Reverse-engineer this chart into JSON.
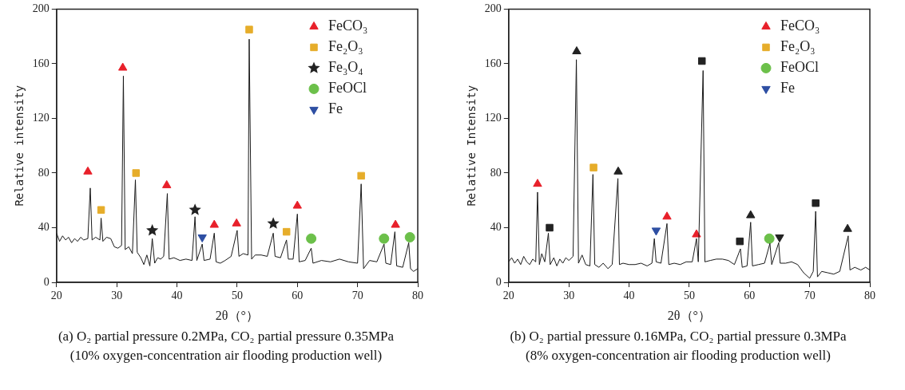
{
  "chart_data": [
    {
      "type": "line",
      "xlabel": "2θ（°）",
      "ylabel": "Relative intensity",
      "xlim": [
        20,
        80
      ],
      "xticks": [
        20,
        30,
        40,
        50,
        60,
        70,
        80
      ],
      "ylim": [
        0,
        200
      ],
      "yticks": [
        0,
        40,
        80,
        120,
        160,
        200
      ],
      "legend": "top right",
      "annotations": [
        "(a) O₂ partial pressure 0.2MPa, CO₂ partial pressure 0.35MPa",
        "(10% oxygen-concentration air flooding production well)"
      ],
      "series": [
        {
          "type": "line",
          "marker": "none",
          "color": "#1a1a1a",
          "x": [
            20,
            20.5,
            21,
            21.5,
            22,
            22.5,
            23,
            23.5,
            24,
            24.5,
            25.2,
            25.6,
            25.9,
            26.5,
            27.2,
            27.4,
            27.7,
            28.3,
            29,
            29.6,
            30.2,
            30.8,
            31.1,
            31.4,
            32,
            32.6,
            33.1,
            33.4,
            34,
            34.5,
            35,
            35.5,
            35.9,
            36.3,
            36.8,
            37.3,
            37.8,
            38.4,
            38.7,
            39.5,
            40.5,
            41.5,
            42.5,
            43,
            43.3,
            44.2,
            44.5,
            45.5,
            46.2,
            46.5,
            47.2,
            48,
            49,
            50,
            50.3,
            51,
            51.8,
            52,
            52.4,
            53,
            54,
            55,
            56,
            56.3,
            57.2,
            58.2,
            58.5,
            59.3,
            60,
            60.3,
            61.3,
            62.3,
            62.6,
            64,
            65.5,
            67,
            68.5,
            70,
            70.6,
            71,
            72,
            73.2,
            74.4,
            74.7,
            75.5,
            76.2,
            76.5,
            77.5,
            78.5,
            78.8,
            79.3,
            80
          ],
          "values": [
            36,
            30,
            34,
            31,
            33,
            29,
            32,
            30,
            33,
            31,
            32,
            69,
            31,
            33,
            31,
            47,
            30,
            33,
            32,
            26,
            25,
            27,
            151,
            24,
            26,
            21,
            75,
            22,
            18,
            13,
            20,
            12,
            32,
            14,
            18,
            17,
            19,
            65,
            17,
            18,
            16,
            17,
            16,
            48,
            16,
            28,
            16,
            17,
            36,
            15,
            14,
            16,
            19,
            38,
            19,
            21,
            20,
            178,
            17,
            20,
            20,
            19,
            36,
            19,
            18,
            31,
            17,
            17,
            50,
            15,
            16,
            25,
            14,
            16,
            15,
            17,
            15,
            14,
            72,
            10,
            16,
            15,
            28,
            14,
            13,
            37,
            12,
            11,
            29,
            10,
            8,
            10
          ]
        },
        {
          "type": "scatter",
          "name": "FeCO₃",
          "marker": "triangle",
          "color": "#e8202a",
          "x": [
            25.2,
            31,
            38.3,
            46.2,
            49.9,
            60,
            76.3
          ],
          "values": [
            81,
            157,
            71,
            42,
            43,
            56,
            42
          ]
        },
        {
          "type": "scatter",
          "name": "Fe₂O₃",
          "marker": "square",
          "color": "#e6ad2a",
          "x": [
            27.4,
            33.2,
            52,
            58.2,
            70.6
          ],
          "values": [
            53,
            80,
            185,
            37,
            78
          ]
        },
        {
          "type": "scatter",
          "name": "Fe₃O₄",
          "marker": "star",
          "color": "#222222",
          "x": [
            35.9,
            43,
            56
          ],
          "values": [
            38,
            53,
            43
          ]
        },
        {
          "type": "scatter",
          "name": "FeOCl",
          "marker": "circle",
          "color": "#6cc04a",
          "x": [
            62.3,
            74.4,
            78.7
          ],
          "values": [
            32,
            32,
            33
          ]
        },
        {
          "type": "scatter",
          "name": "Fe",
          "marker": "triangle-down",
          "color": "#2e4fa3",
          "x": [
            44.2
          ],
          "values": [
            33
          ]
        }
      ]
    },
    {
      "type": "line",
      "xlabel": "2θ（°）",
      "ylabel": "Relative Intensity",
      "xlim": [
        20,
        80
      ],
      "xticks": [
        20,
        30,
        40,
        50,
        60,
        70,
        80
      ],
      "ylim": [
        0,
        200
      ],
      "yticks": [
        0,
        40,
        80,
        120,
        160,
        200
      ],
      "legend": "top right",
      "annotations": [
        "(b) O₂ partial pressure 0.16MPa, CO₂ partial pressure 0.3MPa",
        "(8% oxygen-concentration air flooding production well)"
      ],
      "series": [
        {
          "type": "line",
          "marker": "none",
          "color": "#1a1a1a",
          "x": [
            20,
            20.5,
            21,
            21.5,
            22,
            22.5,
            23,
            23.5,
            24,
            24.5,
            24.8,
            25.1,
            25.5,
            26,
            26.6,
            26.9,
            27.5,
            28,
            28.5,
            29,
            29.5,
            30,
            30.7,
            31.25,
            31.6,
            32.2,
            32.8,
            33.5,
            34,
            34.3,
            35,
            35.7,
            36.5,
            37.2,
            38.15,
            38.4,
            39,
            40,
            41,
            42,
            43,
            43.8,
            44.2,
            44.5,
            45.3,
            46.3,
            46.6,
            47.5,
            48.5,
            49.5,
            50.5,
            51.2,
            51.5,
            52.3,
            52.6,
            53.5,
            54.5,
            55.5,
            56.5,
            57.5,
            58.5,
            58.8,
            59.6,
            60.2,
            60.5,
            61.5,
            62.5,
            63.4,
            63.7,
            64.86,
            65.1,
            66,
            67,
            68,
            69,
            70,
            70.6,
            71,
            71.3,
            72,
            73,
            74,
            75,
            76.4,
            76.7,
            77.5,
            78.5,
            79.3,
            80
          ],
          "values": [
            15,
            18,
            14,
            17,
            13,
            19,
            15,
            13,
            17,
            15,
            66,
            13,
            21,
            15,
            36,
            13,
            18,
            12,
            17,
            14,
            18,
            16,
            19,
            163,
            14,
            20,
            13,
            12,
            79,
            13,
            11,
            14,
            10,
            13,
            76,
            13,
            14,
            13,
            13,
            14,
            12,
            14,
            32,
            15,
            14,
            43,
            13,
            14,
            13,
            15,
            15,
            32,
            15,
            155,
            15,
            16,
            17,
            17,
            16,
            13,
            24.5,
            11,
            12,
            44,
            12,
            13,
            14,
            28.5,
            13,
            29,
            14,
            14,
            15,
            13,
            7,
            3,
            8,
            52,
            4,
            8,
            7,
            6,
            8,
            34,
            9,
            11,
            9,
            11,
            9
          ]
        },
        {
          "type": "scatter",
          "name": "FeCO₃",
          "marker": "triangle",
          "color": "#e8202a",
          "x": [
            24.8,
            46.3,
            51.2
          ],
          "values": [
            72,
            48,
            35
          ]
        },
        {
          "type": "scatter",
          "name": "Fe₂O₃",
          "marker": "square",
          "color": "#e6ad2a",
          "x": [
            34.1
          ],
          "values": [
            84
          ]
        },
        {
          "type": "scatter",
          "name": "FeOCl",
          "marker": "circle",
          "color": "#6cc04a",
          "x": [
            63.3
          ],
          "values": [
            32
          ]
        },
        {
          "type": "scatter",
          "name": "Fe",
          "marker": "triangle-down",
          "color": "#2e4fa3",
          "x": [
            44.5
          ],
          "values": [
            38
          ]
        },
        {
          "type": "scatter",
          "marker": "triangle",
          "color": "#222222",
          "x": [
            31.3,
            38.2,
            60.2,
            76.3
          ],
          "values": [
            169,
            81,
            49,
            39
          ]
        },
        {
          "type": "scatter",
          "marker": "square",
          "color": "#222222",
          "x": [
            26.8,
            52.1,
            58.4,
            71
          ],
          "values": [
            40,
            162,
            30,
            58
          ]
        },
        {
          "type": "scatter",
          "marker": "triangle-down",
          "color": "#222222",
          "x": [
            65
          ],
          "values": [
            33
          ]
        }
      ]
    }
  ]
}
